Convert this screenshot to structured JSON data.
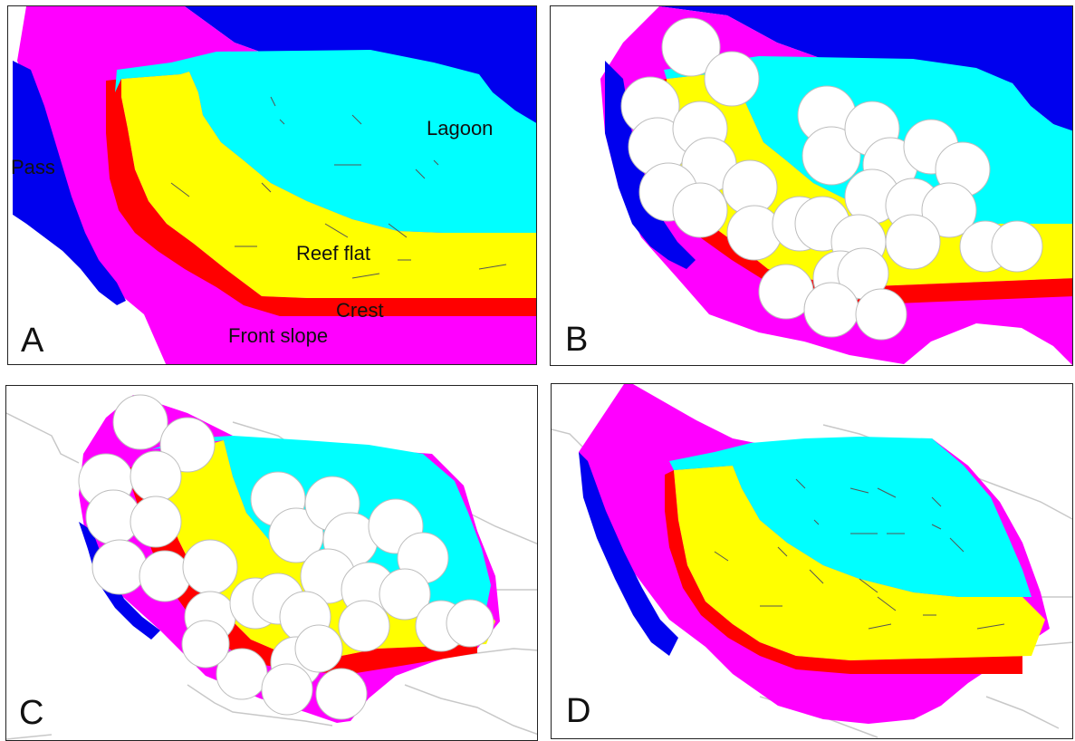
{
  "colors": {
    "pass": "#0000ee",
    "front_slope": "#ff00ff",
    "crest": "#ff0000",
    "reef_flat": "#ffff00",
    "lagoon": "#00ffff",
    "circle_fill": "#ffffff",
    "circle_stroke": "#bdbdbd",
    "contour": "#c8c8c8"
  },
  "panels": [
    {
      "id": "A",
      "label": "A"
    },
    {
      "id": "B",
      "label": "B"
    },
    {
      "id": "C",
      "label": "C"
    },
    {
      "id": "D",
      "label": "D"
    }
  ],
  "zones": {
    "pass": "Pass",
    "lagoon": "Lagoon",
    "reef_flat": "Reef flat",
    "crest": "Crest",
    "front_slope": "Front slope"
  }
}
